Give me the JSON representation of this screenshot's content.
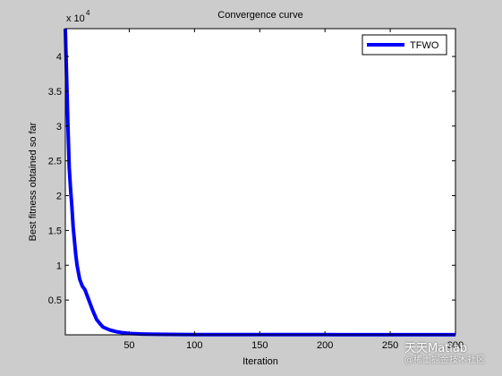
{
  "chart_data": {
    "type": "line",
    "title": "Convergence curve",
    "xlabel": "Iteration",
    "ylabel": "Best fitness obtained so far",
    "y_exponent_label": "x 10",
    "y_exponent": "4",
    "xlim": [
      1,
      300
    ],
    "ylim": [
      0,
      44000
    ],
    "xticks": [
      50,
      100,
      150,
      200,
      250,
      300
    ],
    "xtick_labels": [
      "50",
      "100",
      "150",
      "200",
      "250",
      "300"
    ],
    "yticks": [
      5000,
      10000,
      15000,
      20000,
      25000,
      30000,
      35000,
      40000
    ],
    "ytick_labels": [
      "0.5",
      "1",
      "1.5",
      "2",
      "2.5",
      "3",
      "3.5",
      "4"
    ],
    "grid": false,
    "legend_position": "top-right",
    "series": [
      {
        "name": "TFWO",
        "color": "#0000ff",
        "x": [
          1,
          2,
          3,
          4,
          5,
          6,
          7,
          8,
          9,
          10,
          12,
          14,
          16,
          18,
          20,
          22,
          25,
          28,
          30,
          35,
          40,
          45,
          50,
          60,
          70,
          80,
          100,
          150,
          200,
          250,
          300
        ],
        "y": [
          44000,
          37000,
          30000,
          24000,
          21000,
          18500,
          15500,
          13500,
          11500,
          10000,
          8000,
          7000,
          6500,
          5500,
          4500,
          3500,
          2200,
          1500,
          1100,
          700,
          450,
          300,
          200,
          120,
          80,
          60,
          40,
          30,
          25,
          22,
          20
        ]
      }
    ]
  },
  "watermark": {
    "main": "天天Matlab",
    "sub": "@稀土掘金技术社区"
  }
}
